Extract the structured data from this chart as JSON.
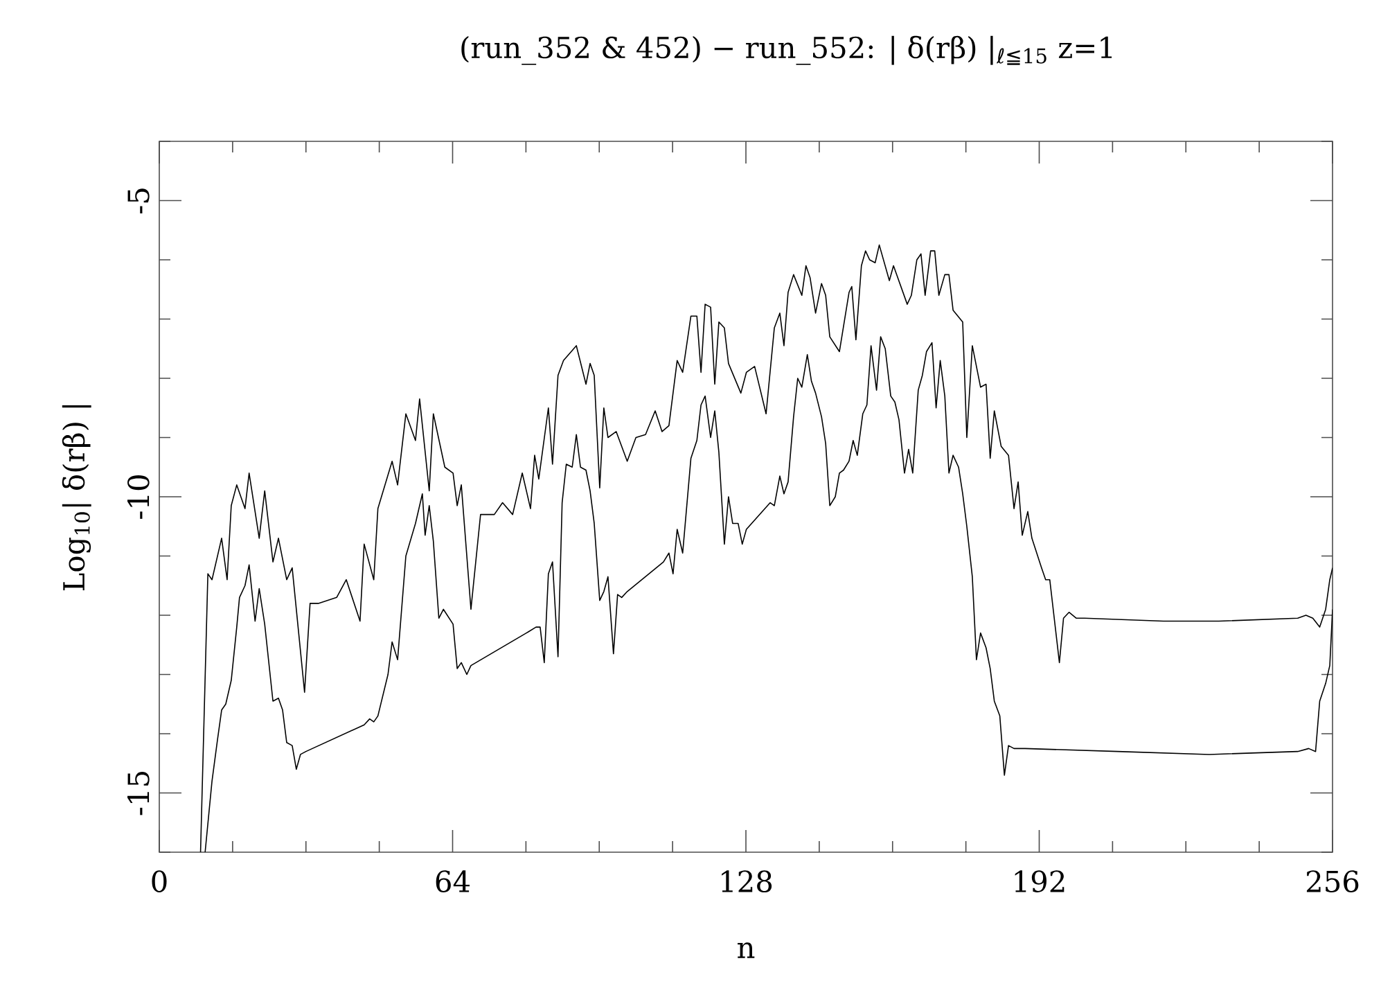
{
  "chart_data": {
    "type": "line",
    "title": "(run_352 & 452) − run_552:   | δ(rβ) |$_{ℓ≦15}$   z=1",
    "xlabel": "n",
    "ylabel": "Log$_{10}$| δ(rβ) |",
    "xlim": [
      0,
      256
    ],
    "ylim": [
      -16,
      -4
    ],
    "xticks": [
      0,
      {
        "value": 16,
        "label": null
      },
      {
        "value": 32,
        "label": null
      },
      {
        "value": 48,
        "label": null
      },
      64,
      {
        "value": 80,
        "label": null
      },
      {
        "value": 96,
        "label": null
      },
      {
        "value": 112,
        "label": null
      },
      128,
      {
        "value": 144,
        "label": null
      },
      {
        "value": 160,
        "label": null
      },
      {
        "value": 176,
        "label": null
      },
      192,
      {
        "value": 208,
        "label": null
      },
      {
        "value": 224,
        "label": null
      },
      {
        "value": 240,
        "label": null
      },
      256
    ],
    "yticks": [
      {
        "value": -16,
        "label": null
      },
      -15,
      {
        "value": -14,
        "label": null
      },
      {
        "value": -13,
        "label": null
      },
      {
        "value": -12,
        "label": null
      },
      {
        "value": -11,
        "label": null
      },
      -10,
      {
        "value": -9,
        "label": null
      },
      {
        "value": -8,
        "label": null
      },
      {
        "value": -7,
        "label": null
      },
      {
        "value": -6,
        "label": null
      },
      -5,
      {
        "value": -4,
        "label": null
      }
    ],
    "marker": "none",
    "line_style": "solid",
    "series": [
      {
        "color": "#000000",
        "x": [
          9,
          10.6,
          11.5,
          13.6,
          14.8,
          15.7,
          16.9,
          18.7,
          19.6,
          21.8,
          23,
          24.8,
          26,
          27.8,
          29,
          31.7,
          32.9,
          34.7,
          38.7,
          40.8,
          43.8,
          44.7,
          46.8,
          47.7,
          50.8,
          52,
          53.8,
          55.9,
          56.8,
          58.9,
          59.8,
          62.3,
          64.1,
          65,
          65.9,
          68,
          70.1,
          73.1,
          74.9,
          77.1,
          79.2,
          81,
          81.9,
          82.8,
          84.9,
          85.8,
          87,
          88.2,
          91,
          93.1,
          94,
          94.9,
          96.1,
          97,
          97.9,
          99.7,
          102.1,
          104,
          106.1,
          108.2,
          109.7,
          111.2,
          113,
          114.2,
          116,
          117.3,
          118.2,
          119.1,
          120.3,
          121.2,
          122.1,
          123.3,
          124.2,
          126.9,
          128.1,
          129.9,
          132.4,
          134.2,
          135.4,
          136.3,
          137.2,
          138.4,
          140.2,
          141.1,
          142,
          143.2,
          144.5,
          145.4,
          146.3,
          148.4,
          150.5,
          151.1,
          152,
          153.2,
          154.1,
          155,
          156.2,
          157.1,
          159.3,
          160.2,
          163.2,
          164.1,
          165.3,
          166.2,
          167.1,
          168.3,
          169.2,
          170.1,
          171.4,
          172.3,
          173.2,
          175.3,
          176.2,
          177.4,
          179.2,
          180.4,
          181.3,
          182.2,
          183.7,
          185.3,
          186.5,
          187.4,
          188.3,
          189.5,
          190.4,
          192.5,
          193.4,
          194.3,
          196.4,
          197.3,
          198.5,
          200.1,
          201.9,
          219.1,
          231.2,
          248.4,
          250.2,
          251.7,
          253.2,
          254.5,
          255.4,
          256
        ],
        "values": [
          -16,
          -11.3,
          -11.4,
          -10.7,
          -11.4,
          -10.15,
          -9.8,
          -10.2,
          -9.6,
          -10.7,
          -9.9,
          -11.1,
          -10.7,
          -11.4,
          -11.2,
          -13.3,
          -11.8,
          -11.8,
          -11.7,
          -11.4,
          -12.1,
          -10.8,
          -11.4,
          -10.2,
          -9.4,
          -9.8,
          -8.6,
          -9.05,
          -8.35,
          -9.9,
          -8.6,
          -9.5,
          -9.6,
          -10.15,
          -9.8,
          -11.9,
          -10.3,
          -10.3,
          -10.1,
          -10.3,
          -9.6,
          -10.2,
          -9.3,
          -9.7,
          -8.5,
          -9.45,
          -7.95,
          -7.7,
          -7.45,
          -8.1,
          -7.75,
          -7.95,
          -9.85,
          -8.5,
          -9,
          -8.9,
          -9.4,
          -9,
          -8.95,
          -8.55,
          -8.9,
          -8.8,
          -7.7,
          -7.9,
          -6.95,
          -6.95,
          -7.9,
          -6.75,
          -6.8,
          -8.1,
          -7.05,
          -7.15,
          -7.75,
          -8.25,
          -7.9,
          -7.8,
          -8.6,
          -7.15,
          -6.9,
          -7.45,
          -6.55,
          -6.25,
          -6.6,
          -6.1,
          -6.3,
          -6.9,
          -6.4,
          -6.6,
          -7.3,
          -7.55,
          -6.55,
          -6.45,
          -7.35,
          -6.1,
          -5.85,
          -6,
          -6.05,
          -5.75,
          -6.35,
          -6.1,
          -6.75,
          -6.6,
          -6,
          -5.9,
          -6.6,
          -5.85,
          -5.85,
          -6.6,
          -6.25,
          -6.25,
          -6.85,
          -7.05,
          -9,
          -7.45,
          -8.15,
          -8.1,
          -9.35,
          -8.55,
          -9.15,
          -9.3,
          -10.2,
          -9.75,
          -10.65,
          -10.25,
          -10.7,
          -11.2,
          -11.4,
          -11.4,
          -12.8,
          -12.05,
          -11.95,
          -12.05,
          -12.05,
          -12.1,
          -12.1,
          -12.05,
          -12,
          -12.05,
          -12.2,
          -11.9,
          -11.4,
          -11.2
        ]
      },
      {
        "color": "#000000",
        "x": [
          10,
          11.5,
          12.7,
          13.6,
          14.5,
          15.7,
          16.9,
          17.5,
          18.7,
          19.6,
          20.9,
          21.8,
          23,
          24.8,
          26,
          26.9,
          27.8,
          29,
          29.9,
          30.8,
          32,
          44.7,
          45.9,
          46.8,
          47.7,
          49.9,
          50.8,
          52,
          53.8,
          55.9,
          57.4,
          58,
          58.9,
          59.8,
          61,
          62,
          64.1,
          65,
          65.9,
          67.1,
          68,
          80.1,
          82.2,
          83.1,
          84,
          84.9,
          85.8,
          87,
          87.9,
          88.8,
          90.1,
          91,
          91.9,
          93.1,
          94,
          94.9,
          96.1,
          97,
          97.9,
          99.1,
          100,
          100.9,
          102.1,
          110,
          111.2,
          112.1,
          113,
          114.2,
          116,
          117.3,
          118.2,
          119.1,
          120.3,
          121.2,
          122.1,
          123.3,
          124.2,
          125.1,
          126.3,
          127.2,
          128.1,
          133.3,
          134.2,
          135.4,
          136.3,
          137.2,
          138.4,
          139.3,
          140.2,
          141.4,
          142.3,
          143.2,
          144.5,
          145.4,
          146.3,
          147.5,
          148.4,
          149.3,
          150.5,
          151.4,
          152.3,
          153.5,
          154.4,
          155.3,
          156.5,
          157.4,
          158.4,
          159.6,
          160.5,
          161.4,
          162.6,
          163.5,
          164.4,
          165.6,
          166.5,
          167.4,
          168.6,
          169.5,
          170.4,
          171.4,
          172.3,
          173.2,
          174.4,
          175.3,
          176.2,
          177.4,
          178.3,
          179.2,
          180.4,
          181.3,
          182.2,
          183.4,
          184.4,
          185.3,
          186.5,
          187.4,
          188.9,
          209.1,
          229.1,
          248.4,
          250.8,
          252.3,
          253.2,
          254.5,
          255.4,
          256
        ],
        "values": [
          -16,
          -14.8,
          -14.1,
          -13.6,
          -13.5,
          -13.1,
          -12.2,
          -11.7,
          -11.5,
          -11.15,
          -12.1,
          -11.55,
          -12.15,
          -13.45,
          -13.4,
          -13.6,
          -14.15,
          -14.2,
          -14.6,
          -14.35,
          -14.3,
          -13.85,
          -13.75,
          -13.8,
          -13.7,
          -13,
          -12.45,
          -12.75,
          -11,
          -10.45,
          -9.95,
          -10.65,
          -10.15,
          -10.75,
          -12.05,
          -11.9,
          -12.15,
          -12.9,
          -12.8,
          -13,
          -12.85,
          -12.3,
          -12.2,
          -12.2,
          -12.8,
          -11.3,
          -11.1,
          -12.7,
          -10.1,
          -9.45,
          -9.5,
          -8.95,
          -9.5,
          -9.55,
          -9.9,
          -10.45,
          -11.75,
          -11.6,
          -11.35,
          -12.65,
          -11.65,
          -11.7,
          -11.6,
          -11.1,
          -10.95,
          -11.3,
          -10.55,
          -10.95,
          -9.35,
          -9.05,
          -8.45,
          -8.3,
          -9,
          -8.55,
          -9.25,
          -10.8,
          -10,
          -10.45,
          -10.45,
          -10.8,
          -10.55,
          -10.1,
          -10.15,
          -9.65,
          -9.95,
          -9.75,
          -8.65,
          -8,
          -8.15,
          -7.6,
          -8.05,
          -8.25,
          -8.65,
          -9.1,
          -10.15,
          -10,
          -9.6,
          -9.55,
          -9.4,
          -9.05,
          -9.3,
          -8.6,
          -8.45,
          -7.45,
          -8.2,
          -7.3,
          -7.5,
          -8.3,
          -8.4,
          -8.7,
          -9.6,
          -9.2,
          -9.6,
          -8.2,
          -7.95,
          -7.55,
          -7.4,
          -8.5,
          -7.7,
          -8.3,
          -9.6,
          -9.3,
          -9.5,
          -9.95,
          -10.5,
          -11.35,
          -12.75,
          -12.3,
          -12.55,
          -12.9,
          -13.45,
          -13.7,
          -14.7,
          -14.2,
          -14.25,
          -14.25,
          -14.25,
          -14.3,
          -14.35,
          -14.3,
          -14.25,
          -14.3,
          -13.45,
          -13.15,
          -12.85,
          -11.9
        ]
      }
    ]
  }
}
